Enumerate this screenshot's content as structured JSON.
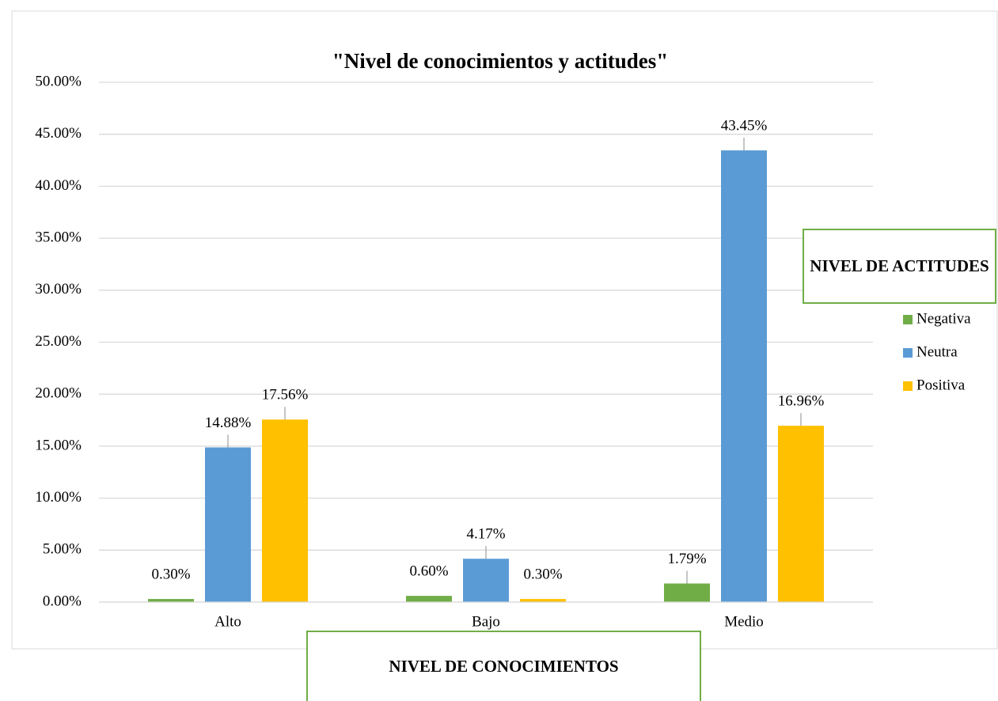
{
  "chart_data": {
    "type": "bar",
    "title": "\"Nivel de conocimientos y actitudes\"",
    "x_label": "NIVEL DE CONOCIMIENTOS",
    "legend_title": "NIVEL DE ACTITUDES",
    "legend": "right",
    "grid": true,
    "categories": [
      "Alto",
      "Bajo",
      "Medio"
    ],
    "series": [
      {
        "name": "Negativa",
        "color": "#70ad47",
        "values": [
          0.3,
          0.6,
          1.79
        ],
        "value_labels": [
          "0.30%",
          "0.60%",
          "1.79%"
        ]
      },
      {
        "name": "Neutra",
        "color": "#5b9bd5",
        "values": [
          14.88,
          4.17,
          43.45
        ],
        "value_labels": [
          "14.88%",
          "4.17%",
          "43.45%"
        ]
      },
      {
        "name": "Positiva",
        "color": "#ffc000",
        "values": [
          17.56,
          0.3,
          16.96
        ],
        "value_labels": [
          "17.56%",
          "0.30%",
          "16.96%"
        ]
      }
    ],
    "ylim": [
      0,
      50
    ],
    "yticks": [
      {
        "value": 0,
        "label": "0.00%"
      },
      {
        "value": 5,
        "label": "5.00%"
      },
      {
        "value": 10,
        "label": "10.00%"
      },
      {
        "value": 15,
        "label": "15.00%"
      },
      {
        "value": 20,
        "label": "20.00%"
      },
      {
        "value": 25,
        "label": "25.00%"
      },
      {
        "value": 30,
        "label": "30.00%"
      },
      {
        "value": 35,
        "label": "35.00%"
      },
      {
        "value": 40,
        "label": "40.00%"
      },
      {
        "value": 45,
        "label": "45.00%"
      },
      {
        "value": 50,
        "label": "50.00%"
      }
    ]
  }
}
